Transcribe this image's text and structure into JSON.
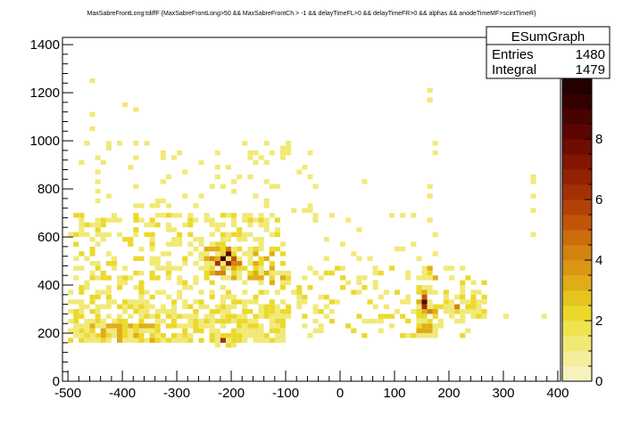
{
  "chart_data": {
    "type": "heatmap",
    "title": "MaxSabreFrontLong:tdiffF {MaxSabreFrontLong>50 && MaxSabreFrontCh > -1 && delayTimeFL>0 && delayTimeFR>0 && alphas && anodeTimeMF>scintTimeR}",
    "xlabel": "",
    "ylabel": "",
    "xlim": [
      -510,
      405
    ],
    "ylim": [
      0,
      1430
    ],
    "zlim": [
      0,
      10
    ],
    "x_ticks": [
      "-500",
      "-400",
      "-300",
      "-200",
      "-100",
      "0",
      "100",
      "200",
      "300",
      "400"
    ],
    "y_ticks": [
      "0",
      "200",
      "400",
      "600",
      "800",
      "1000",
      "1200",
      "1400"
    ],
    "z_ticks": [
      "0",
      "2",
      "4",
      "6",
      "8"
    ],
    "bin_width_x": 10,
    "bin_width_y": 20,
    "palette": [
      "#f7f1bd",
      "#f4ed9a",
      "#f1e976",
      "#eee452",
      "#ebd92a",
      "#e6c31e",
      "#e0ad18",
      "#da9713",
      "#d4820f",
      "#cc6c0c",
      "#c05509",
      "#b24207",
      "#a33005",
      "#932204",
      "#821603",
      "#700c02",
      "#5c0601",
      "#480300",
      "#350100",
      "#240000"
    ],
    "stats": {
      "name": "ESumGraph",
      "entries_label": "Entries",
      "entries_value": "1480",
      "integral_label": "Integral",
      "integral_value": "1479"
    },
    "clusters": [
      {
        "x": [
          -495,
          -95
        ],
        "y": [
          160,
          330
        ],
        "count": 420,
        "zmax": 2
      },
      {
        "x": [
          -495,
          -100
        ],
        "y": [
          330,
          700
        ],
        "count": 330,
        "zmax": 2
      },
      {
        "x": [
          -480,
          -40
        ],
        "y": [
          640,
          1000
        ],
        "count": 95,
        "zmax": 1
      },
      {
        "x": [
          -440,
          -330
        ],
        "y": [
          160,
          240
        ],
        "count": 90,
        "zmax": 3
      },
      {
        "x": [
          -250,
          -180
        ],
        "y": [
          430,
          560
        ],
        "count": 80,
        "zmax": 4
      },
      {
        "x": [
          -170,
          -90
        ],
        "y": [
          400,
          560
        ],
        "count": 45,
        "zmax": 3
      },
      {
        "x": [
          -90,
          270
        ],
        "y": [
          180,
          470
        ],
        "count": 150,
        "zmax": 2
      },
      {
        "x": [
          140,
          175
        ],
        "y": [
          180,
          480
        ],
        "count": 45,
        "zmax": 3
      },
      {
        "x": [
          190,
          270
        ],
        "y": [
          270,
          350
        ],
        "count": 35,
        "zmax": 2
      },
      {
        "x": [
          -30,
          180
        ],
        "y": [
          500,
          700
        ],
        "count": 20,
        "zmax": 1
      },
      {
        "x": [
          -240,
          -180
        ],
        "y": [
          140,
          220
        ],
        "count": 30,
        "zmax": 2
      }
    ],
    "hotspots": [
      {
        "x": -220,
        "y": 510,
        "z": 9
      },
      {
        "x": -210,
        "y": 530,
        "z": 8
      },
      {
        "x": -230,
        "y": 490,
        "z": 6
      },
      {
        "x": -200,
        "y": 500,
        "z": 5
      },
      {
        "x": -210,
        "y": 480,
        "z": 7
      },
      {
        "x": 150,
        "y": 330,
        "z": 8
      },
      {
        "x": 150,
        "y": 310,
        "z": 6
      },
      {
        "x": 150,
        "y": 350,
        "z": 5
      },
      {
        "x": 160,
        "y": 290,
        "z": 4
      },
      {
        "x": -220,
        "y": 170,
        "z": 6
      },
      {
        "x": 210,
        "y": 310,
        "z": 4
      },
      {
        "x": -410,
        "y": 200,
        "z": 3
      },
      {
        "x": -380,
        "y": 180,
        "z": 3
      },
      {
        "x": -140,
        "y": 510,
        "z": 3
      },
      {
        "x": -460,
        "y": 230,
        "z": 3
      }
    ],
    "sparse_points": [
      {
        "x": -460,
        "y": 1250,
        "z": 1
      },
      {
        "x": -460,
        "y": 1110,
        "z": 1
      },
      {
        "x": -460,
        "y": 1050,
        "z": 1
      },
      {
        "x": -400,
        "y": 1140,
        "z": 1
      },
      {
        "x": -380,
        "y": 1120,
        "z": 1
      },
      {
        "x": 160,
        "y": 1210,
        "z": 1
      },
      {
        "x": 160,
        "y": 1170,
        "z": 1
      },
      {
        "x": 170,
        "y": 990,
        "z": 1
      },
      {
        "x": 170,
        "y": 950,
        "z": 1
      },
      {
        "x": 160,
        "y": 800,
        "z": 1
      },
      {
        "x": 160,
        "y": 760,
        "z": 1
      },
      {
        "x": 350,
        "y": 850,
        "z": 1
      },
      {
        "x": 350,
        "y": 820,
        "z": 1
      },
      {
        "x": 350,
        "y": 760,
        "z": 1
      },
      {
        "x": 350,
        "y": 700,
        "z": 1
      },
      {
        "x": 350,
        "y": 600,
        "z": 1
      },
      {
        "x": 370,
        "y": 270,
        "z": 1
      },
      {
        "x": 300,
        "y": 270,
        "z": 1
      },
      {
        "x": 60,
        "y": 440,
        "z": 1
      },
      {
        "x": 40,
        "y": 820,
        "z": 1
      }
    ]
  }
}
